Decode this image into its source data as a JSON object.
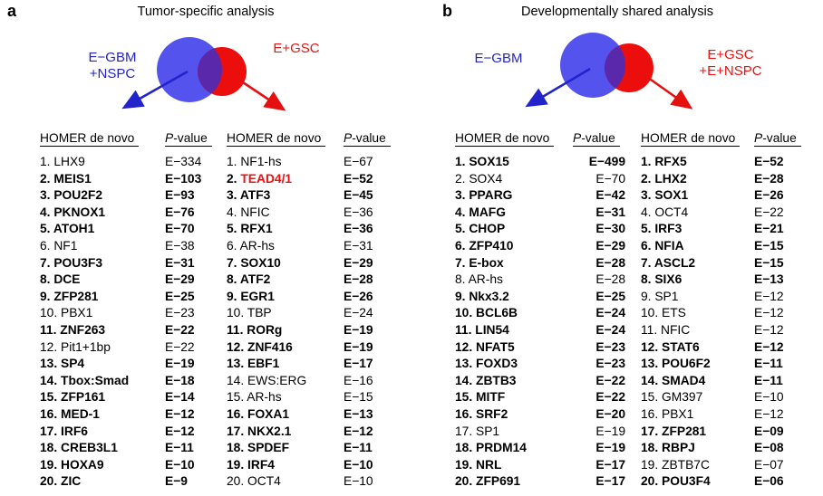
{
  "colors": {
    "blue_circle": "#5553ed",
    "red_circle": "#ec0d0d",
    "overlap": "#5a28aa",
    "blue_text": "#2323cb",
    "red_text": "#ee1111",
    "highlight_red": "#ed1111"
  },
  "panels": [
    {
      "letter": "a",
      "title": "Tumor-specific analysis",
      "venn": {
        "left_label": "E−GBM\n+NSPC",
        "right_label": "E+GSC"
      },
      "lists": [
        {
          "header": {
            "name": "HOMER de novo",
            "p_italic": "P",
            "p_rest": "-value"
          },
          "rows": [
            {
              "rank": 1,
              "name": "LHX9",
              "p": "E−334",
              "bold": false
            },
            {
              "rank": 2,
              "name": "MEIS1",
              "p": "E−103",
              "bold": true
            },
            {
              "rank": 3,
              "name": "POU2F2",
              "p": "E−93",
              "bold": true
            },
            {
              "rank": 4,
              "name": "PKNOX1",
              "p": "E−76",
              "bold": true
            },
            {
              "rank": 5,
              "name": "ATOH1",
              "p": "E−70",
              "bold": true
            },
            {
              "rank": 6,
              "name": "NF1",
              "p": "E−38",
              "bold": false
            },
            {
              "rank": 7,
              "name": "POU3F3",
              "p": "E−31",
              "bold": true
            },
            {
              "rank": 8,
              "name": "DCE",
              "p": "E−29",
              "bold": true
            },
            {
              "rank": 9,
              "name": "ZFP281",
              "p": "E−25",
              "bold": true
            },
            {
              "rank": 10,
              "name": "PBX1",
              "p": "E−23",
              "bold": false
            },
            {
              "rank": 11,
              "name": "ZNF263",
              "p": "E−22",
              "bold": true
            },
            {
              "rank": 12,
              "name": "Pit1+1bp",
              "p": "E−22",
              "bold": false
            },
            {
              "rank": 13,
              "name": "SP4",
              "p": "E−19",
              "bold": true
            },
            {
              "rank": 14,
              "name": "Tbox:Smad",
              "p": "E−18",
              "bold": true
            },
            {
              "rank": 15,
              "name": "ZFP161",
              "p": "E−14",
              "bold": true
            },
            {
              "rank": 16,
              "name": "MED-1",
              "p": "E−12",
              "bold": true
            },
            {
              "rank": 17,
              "name": "IRF6",
              "p": "E−12",
              "bold": true
            },
            {
              "rank": 18,
              "name": "CREB3L1",
              "p": "E−11",
              "bold": true
            },
            {
              "rank": 19,
              "name": "HOXA9",
              "p": "E−10",
              "bold": true
            },
            {
              "rank": 20,
              "name": "ZIC",
              "p": "E−9",
              "bold": true
            }
          ]
        },
        {
          "header": {
            "name": "HOMER de novo",
            "p_italic": "P",
            "p_rest": "-value"
          },
          "rows": [
            {
              "rank": 1,
              "name": "NF1-hs",
              "p": "E−67",
              "bold": false
            },
            {
              "rank": 2,
              "name": "TEAD4/1",
              "p": "E−52",
              "bold": true,
              "color": "#ed1111"
            },
            {
              "rank": 3,
              "name": "ATF3",
              "p": "E−45",
              "bold": true
            },
            {
              "rank": 4,
              "name": "NFIC",
              "p": "E−36",
              "bold": false
            },
            {
              "rank": 5,
              "name": "RFX1",
              "p": "E−36",
              "bold": true
            },
            {
              "rank": 6,
              "name": "AR-hs",
              "p": "E−31",
              "bold": false
            },
            {
              "rank": 7,
              "name": "SOX10",
              "p": "E−29",
              "bold": true
            },
            {
              "rank": 8,
              "name": "ATF2",
              "p": "E−28",
              "bold": true
            },
            {
              "rank": 9,
              "name": "EGR1",
              "p": "E−26",
              "bold": true
            },
            {
              "rank": 10,
              "name": "TBP",
              "p": "E−24",
              "bold": false
            },
            {
              "rank": 11,
              "name": "RORg",
              "p": "E−19",
              "bold": true
            },
            {
              "rank": 12,
              "name": "ZNF416",
              "p": "E−19",
              "bold": true
            },
            {
              "rank": 13,
              "name": "EBF1",
              "p": "E−17",
              "bold": true
            },
            {
              "rank": 14,
              "name": "EWS:ERG",
              "p": "E−16",
              "bold": false
            },
            {
              "rank": 15,
              "name": "AR-hs",
              "p": "E−15",
              "bold": false
            },
            {
              "rank": 16,
              "name": "FOXA1",
              "p": "E−13",
              "bold": true
            },
            {
              "rank": 17,
              "name": "NKX2.1",
              "p": "E−12",
              "bold": true
            },
            {
              "rank": 18,
              "name": "SPDEF",
              "p": "E−11",
              "bold": true
            },
            {
              "rank": 19,
              "name": "IRF4",
              "p": "E−10",
              "bold": true
            },
            {
              "rank": 20,
              "name": "OCT4",
              "p": "E−10",
              "bold": false
            }
          ]
        }
      ]
    },
    {
      "letter": "b",
      "title": "Developmentally shared analysis",
      "venn": {
        "left_label": "E−GBM",
        "right_label": "E+GSC\n+E+NSPC"
      },
      "lists": [
        {
          "header": {
            "name": "HOMER de novo",
            "p_italic": "P",
            "p_rest": "-value"
          },
          "rows": [
            {
              "rank": 1,
              "name": "SOX15",
              "p": "E−499",
              "bold": true
            },
            {
              "rank": 2,
              "name": "SOX4",
              "p": "E−70",
              "bold": false
            },
            {
              "rank": 3,
              "name": "PPARG",
              "p": "E−42",
              "bold": true
            },
            {
              "rank": 4,
              "name": "MAFG",
              "p": "E−31",
              "bold": true
            },
            {
              "rank": 5,
              "name": "CHOP",
              "p": "E−30",
              "bold": true
            },
            {
              "rank": 6,
              "name": "ZFP410",
              "p": "E−29",
              "bold": true
            },
            {
              "rank": 7,
              "name": "E-box",
              "p": "E−28",
              "bold": true
            },
            {
              "rank": 8,
              "name": "AR-hs",
              "p": "E−28",
              "bold": false
            },
            {
              "rank": 9,
              "name": "Nkx3.2",
              "p": "E−25",
              "bold": true
            },
            {
              "rank": 10,
              "name": "BCL6B",
              "p": "E−24",
              "bold": true
            },
            {
              "rank": 11,
              "name": "LIN54",
              "p": "E−24",
              "bold": true
            },
            {
              "rank": 12,
              "name": "NFAT5",
              "p": "E−23",
              "bold": true
            },
            {
              "rank": 13,
              "name": "FOXD3",
              "p": "E−23",
              "bold": true
            },
            {
              "rank": 14,
              "name": "ZBTB3",
              "p": "E−22",
              "bold": true
            },
            {
              "rank": 15,
              "name": "MITF",
              "p": "E−22",
              "bold": true
            },
            {
              "rank": 16,
              "name": "SRF2",
              "p": "E−20",
              "bold": true
            },
            {
              "rank": 17,
              "name": "SP1",
              "p": "E−19",
              "bold": false
            },
            {
              "rank": 18,
              "name": "PRDM14",
              "p": "E−19",
              "bold": true
            },
            {
              "rank": 19,
              "name": "NRL",
              "p": "E−17",
              "bold": true
            },
            {
              "rank": 20,
              "name": "ZFP691",
              "p": "E−17",
              "bold": true
            }
          ]
        },
        {
          "header": {
            "name": "HOMER de novo",
            "p_italic": "P",
            "p_rest": "-value"
          },
          "rows": [
            {
              "rank": 1,
              "name": "RFX5",
              "p": "E−52",
              "bold": true
            },
            {
              "rank": 2,
              "name": "LHX2",
              "p": "E−28",
              "bold": true
            },
            {
              "rank": 3,
              "name": "SOX1",
              "p": "E−26",
              "bold": true
            },
            {
              "rank": 4,
              "name": "OCT4",
              "p": "E−22",
              "bold": false
            },
            {
              "rank": 5,
              "name": "IRF3",
              "p": "E−21",
              "bold": true
            },
            {
              "rank": 6,
              "name": "NFIA",
              "p": "E−15",
              "bold": true
            },
            {
              "rank": 7,
              "name": "ASCL2",
              "p": "E−15",
              "bold": true
            },
            {
              "rank": 8,
              "name": "SIX6",
              "p": "E−13",
              "bold": true
            },
            {
              "rank": 9,
              "name": "SP1",
              "p": "E−12",
              "bold": false
            },
            {
              "rank": 10,
              "name": "ETS",
              "p": "E−12",
              "bold": false
            },
            {
              "rank": 11,
              "name": "NFIC",
              "p": "E−12",
              "bold": false
            },
            {
              "rank": 12,
              "name": "STAT6",
              "p": "E−12",
              "bold": true
            },
            {
              "rank": 13,
              "name": "POU6F2",
              "p": "E−11",
              "bold": true
            },
            {
              "rank": 14,
              "name": "SMAD4",
              "p": "E−11",
              "bold": true
            },
            {
              "rank": 15,
              "name": "GM397",
              "p": "E−10",
              "bold": false
            },
            {
              "rank": 16,
              "name": "PBX1",
              "p": "E−12",
              "bold": false
            },
            {
              "rank": 17,
              "name": "ZFP281",
              "p": "E−09",
              "bold": true
            },
            {
              "rank": 18,
              "name": "RBPJ",
              "p": "E−08",
              "bold": true
            },
            {
              "rank": 19,
              "name": "ZBTB7C",
              "p": "E−07",
              "bold": false
            },
            {
              "rank": 20,
              "name": "POU3F4",
              "p": "E−06",
              "bold": true
            }
          ]
        }
      ]
    }
  ]
}
